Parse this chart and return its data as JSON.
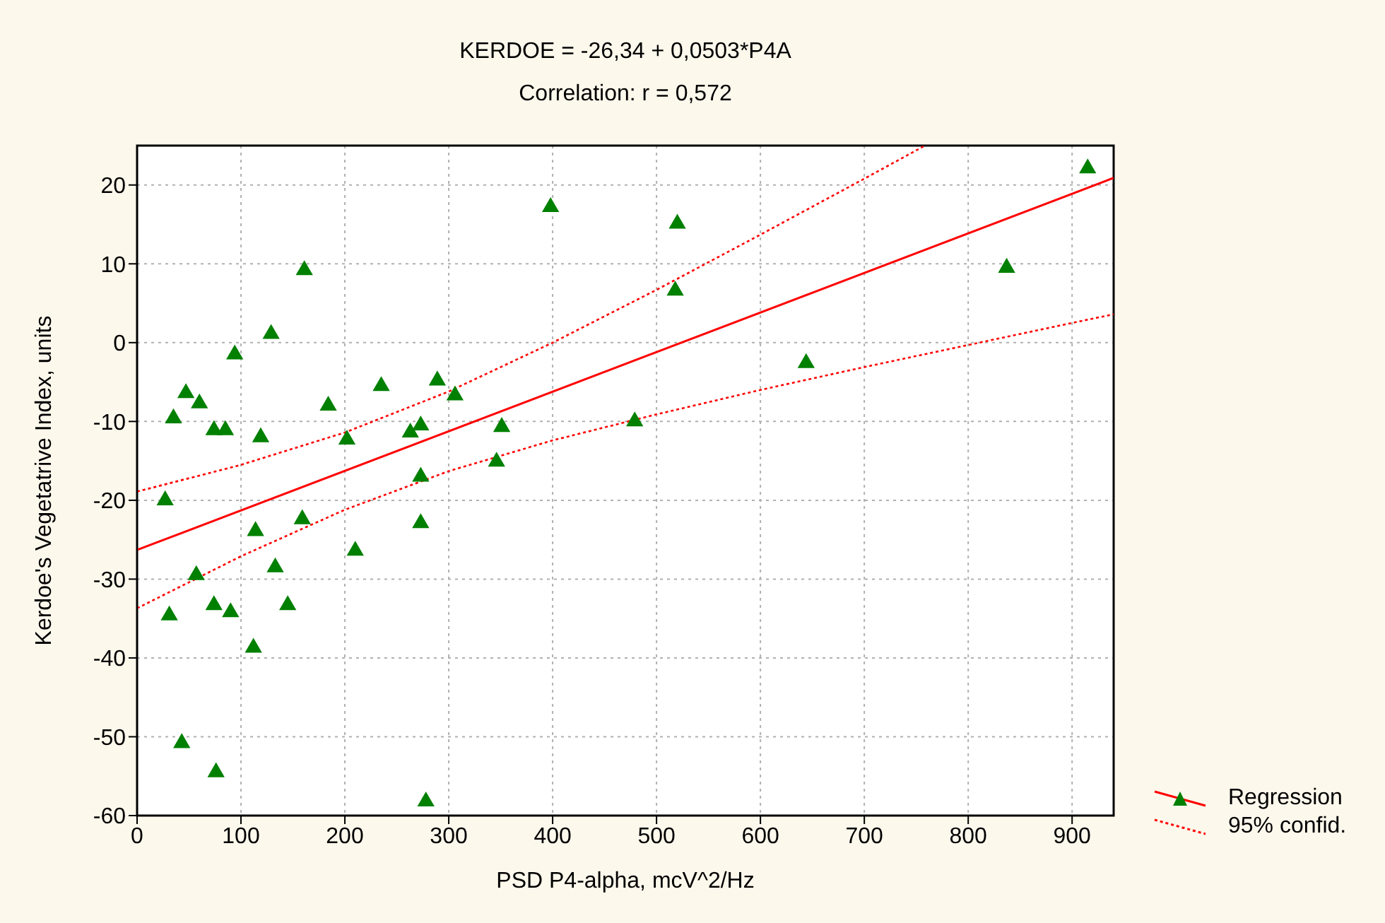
{
  "chart_data": {
    "type": "scatter",
    "title": "KERDOE = -26,34 + 0,0503*P4A",
    "subtitle": "Correlation: r = 0,572",
    "xlabel": "PSD P4-alpha, mcV^2/Hz",
    "ylabel": "Kerdoe's Vegetatrive Index, units",
    "xlim": [
      0,
      940
    ],
    "xticks": [
      0,
      100,
      200,
      300,
      400,
      500,
      600,
      700,
      800,
      900
    ],
    "ylim": [
      -60,
      25
    ],
    "yticks": [
      -60,
      -50,
      -40,
      -30,
      -20,
      -10,
      0,
      10,
      20
    ],
    "grid": true,
    "legend": "bottom right",
    "series": [
      {
        "color": "#008000",
        "marker": "triangle",
        "x": [
          161,
          129,
          94,
          47,
          60,
          35,
          74,
          85,
          119,
          184,
          202,
          235,
          289,
          306,
          263,
          273,
          351,
          346,
          273,
          27,
          114,
          159,
          273,
          210,
          133,
          57,
          31,
          74,
          90,
          145,
          112,
          43,
          76,
          278,
          398,
          520,
          518,
          837,
          915,
          644,
          479
        ],
        "values": [
          9.2,
          1.1,
          -1.5,
          -6.4,
          -7.7,
          -9.6,
          -11.1,
          -11.1,
          -12,
          -8,
          -12.3,
          -5.5,
          -4.8,
          -6.7,
          -11.4,
          -10.5,
          -10.7,
          -15.1,
          -17,
          -20,
          -23.9,
          -22.4,
          -22.9,
          -26.4,
          -28.5,
          -29.5,
          -34.6,
          -33.3,
          -34.2,
          -33.3,
          -38.7,
          -50.8,
          -54.5,
          -58.2,
          17.2,
          15.1,
          6.6,
          9.5,
          22.1,
          -2.6,
          -10
        ]
      },
      {
        "type": "line",
        "name": "Regression",
        "color": "#ff0000",
        "line_style": "solid",
        "x": [
          0,
          940
        ],
        "values": [
          -26.3,
          20.9
        ]
      },
      {
        "type": "line",
        "name": "95% confid.",
        "color": "#ff0000",
        "line_style": "dotted",
        "x": [
          0,
          100,
          200,
          300,
          400,
          500,
          600,
          700,
          757
        ],
        "values": [
          -18.9,
          -15.5,
          -11.4,
          -6.2,
          0,
          6.7,
          13.7,
          20.8,
          24.9
        ]
      },
      {
        "type": "line",
        "color": "#ff0000",
        "line_style": "dotted",
        "x": [
          0,
          100,
          200,
          300,
          400,
          500,
          600,
          700,
          800,
          900,
          940
        ],
        "values": [
          -33.7,
          -27.1,
          -21.2,
          -16.3,
          -12.4,
          -9.1,
          -6,
          -3.1,
          -0.3,
          2.5,
          3.6
        ]
      }
    ]
  }
}
